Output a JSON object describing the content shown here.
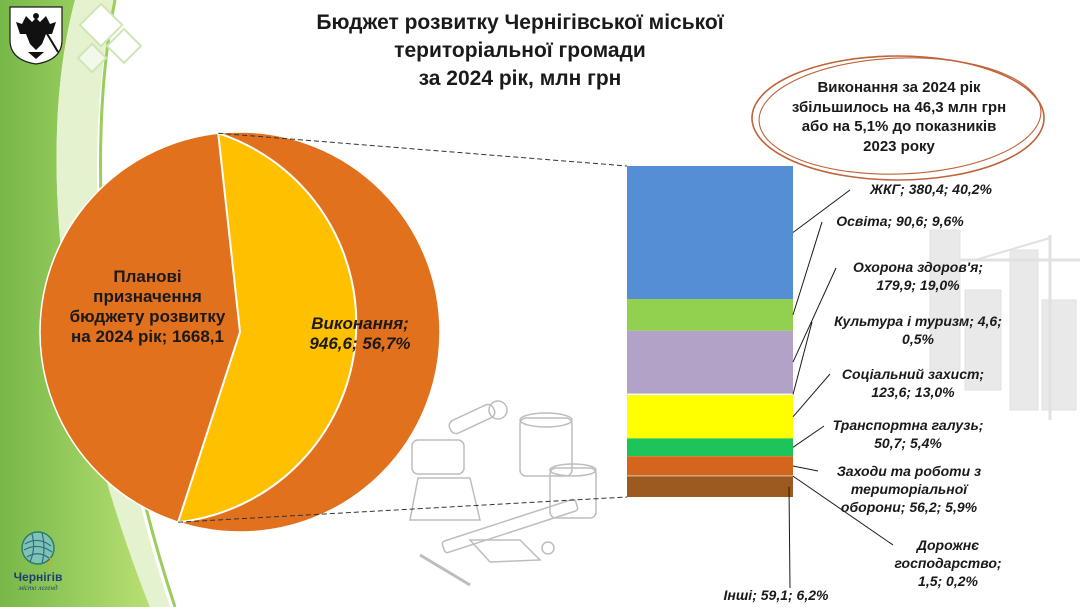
{
  "title": {
    "line1": "Бюджет розвитку Чернігівської міської",
    "line2": "територіальної громади",
    "line3": "за 2024 рік, млн грн"
  },
  "note": {
    "line1": "Виконання за 2024 рік",
    "line2": "збільшилось на 46,3 млн грн",
    "line3": "або на 5,1% до показників",
    "line4": "2023 року"
  },
  "logo": {
    "city_name": "Чернігів",
    "tagline": "місто легенд"
  },
  "colors": {
    "pie_plan": "#e2711d",
    "pie_exec": "#ffc000",
    "accent_green": "#8cc63f",
    "note_ellipse": "#c0633a"
  },
  "chart_data": [
    {
      "type": "pie",
      "title": "",
      "slices": [
        {
          "id": "plan",
          "label_lines": [
            "Планові",
            "призначення",
            "бюджету розвитку",
            "на 2024 рік; 1668,1"
          ],
          "value": 1668.1,
          "color": "#e2711d"
        },
        {
          "id": "exec",
          "label_lines": [
            "Виконання;",
            "946,6; 56,7%"
          ],
          "value": 946.6,
          "percent": 56.7,
          "color": "#ffc000"
        }
      ]
    },
    {
      "type": "bar",
      "stacked": true,
      "title": "",
      "segments": [
        {
          "label_lines": [
            "ЖКГ;  380,4; 40,2%"
          ],
          "value": 380.4,
          "percent": 40.2,
          "color": "#558ed5"
        },
        {
          "label_lines": [
            "Освіта;  90,6; 9,6%"
          ],
          "value": 90.6,
          "percent": 9.6,
          "color": "#92d050"
        },
        {
          "label_lines": [
            "Охорона здоров'я;",
            "179,9; 19,0%"
          ],
          "value": 179.9,
          "percent": 19.0,
          "color": "#b3a2c7"
        },
        {
          "label_lines": [
            "Культура і туризм;  4,6;",
            "0,5%"
          ],
          "value": 4.6,
          "percent": 0.5,
          "color": "#ffffff"
        },
        {
          "label_lines": [
            "Соціальний захист;",
            "123,6; 13,0%"
          ],
          "value": 123.6,
          "percent": 13.0,
          "color": "#ffff00"
        },
        {
          "label_lines": [
            "Транспортна галузь;",
            "50,7; 5,4%"
          ],
          "value": 50.7,
          "percent": 5.4,
          "color": "#1cc45a"
        },
        {
          "label_lines": [
            "Заходи та роботи з",
            "територіальної",
            "оборони;  56,2; 5,9%"
          ],
          "value": 56.2,
          "percent": 5.9,
          "color": "#d4651c"
        },
        {
          "label_lines": [
            "Дорожнє",
            "господарство;",
            "1,5; 0,2%"
          ],
          "value": 1.5,
          "percent": 0.2,
          "color": "#ffffff"
        },
        {
          "label_lines": [
            "Інші;  59,1; 6,2%"
          ],
          "value": 59.1,
          "percent": 6.2,
          "color": "#9c5a1e"
        }
      ]
    }
  ]
}
